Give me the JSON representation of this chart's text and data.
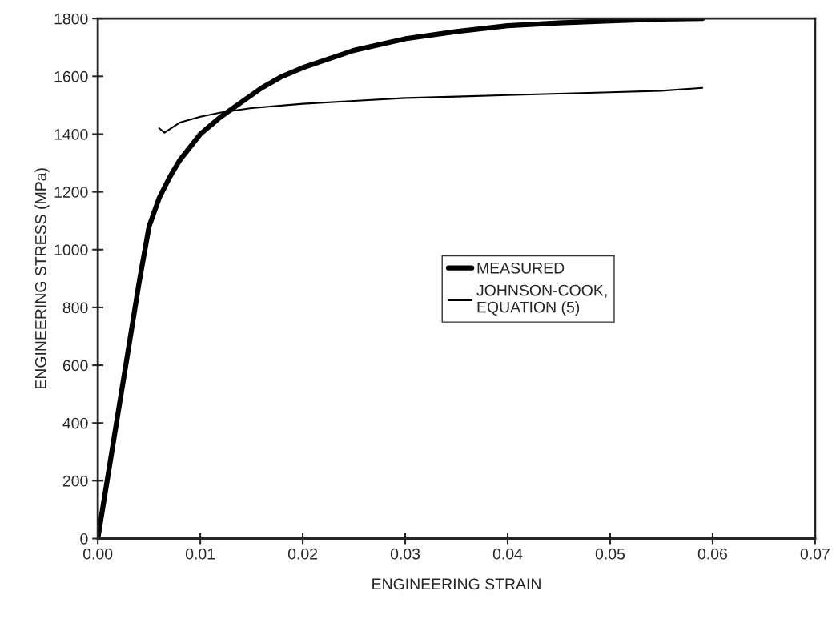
{
  "chart_data": {
    "type": "line",
    "xlabel": "ENGINEERING STRAIN",
    "ylabel": "ENGINEERING STRESS (MPa)",
    "xlim": [
      0,
      0.07
    ],
    "ylim": [
      0,
      1800
    ],
    "xticks": [
      {
        "value": 0,
        "label": "0.00"
      },
      {
        "value": 0.01,
        "label": "0.01"
      },
      {
        "value": 0.02,
        "label": "0.02"
      },
      {
        "value": 0.03,
        "label": "0.03"
      },
      {
        "value": 0.04,
        "label": "0.04"
      },
      {
        "value": 0.05,
        "label": "0.05"
      },
      {
        "value": 0.06,
        "label": "0.06"
      },
      {
        "value": 0.07,
        "label": "0.07"
      }
    ],
    "yticks": [
      0,
      200,
      400,
      600,
      800,
      1000,
      1200,
      1400,
      1600,
      1800
    ],
    "grid": false,
    "legend": "center",
    "marker": "none",
    "line_style": "solid",
    "series": [
      {
        "name": "MEASURED",
        "color": "#000000",
        "x": [
          0,
          0.001,
          0.002,
          0.003,
          0.004,
          0.005,
          0.006,
          0.007,
          0.008,
          0.01,
          0.012,
          0.014,
          0.016,
          0.018,
          0.02,
          0.025,
          0.03,
          0.035,
          0.04,
          0.045,
          0.05,
          0.055,
          0.059
        ],
        "values": [
          0,
          220,
          440,
          660,
          880,
          1080,
          1180,
          1250,
          1310,
          1400,
          1460,
          1510,
          1560,
          1600,
          1630,
          1690,
          1730,
          1755,
          1775,
          1785,
          1792,
          1798,
          1800
        ]
      },
      {
        "name": "JOHNSON-COOK,\nEQUATION (5)",
        "color": "#000000",
        "x": [
          0.006,
          0.0065,
          0.008,
          0.01,
          0.012,
          0.015,
          0.02,
          0.025,
          0.03,
          0.035,
          0.04,
          0.045,
          0.05,
          0.055,
          0.059
        ],
        "values": [
          1420,
          1405,
          1440,
          1460,
          1475,
          1490,
          1505,
          1515,
          1525,
          1530,
          1535,
          1540,
          1545,
          1550,
          1560
        ]
      }
    ]
  }
}
